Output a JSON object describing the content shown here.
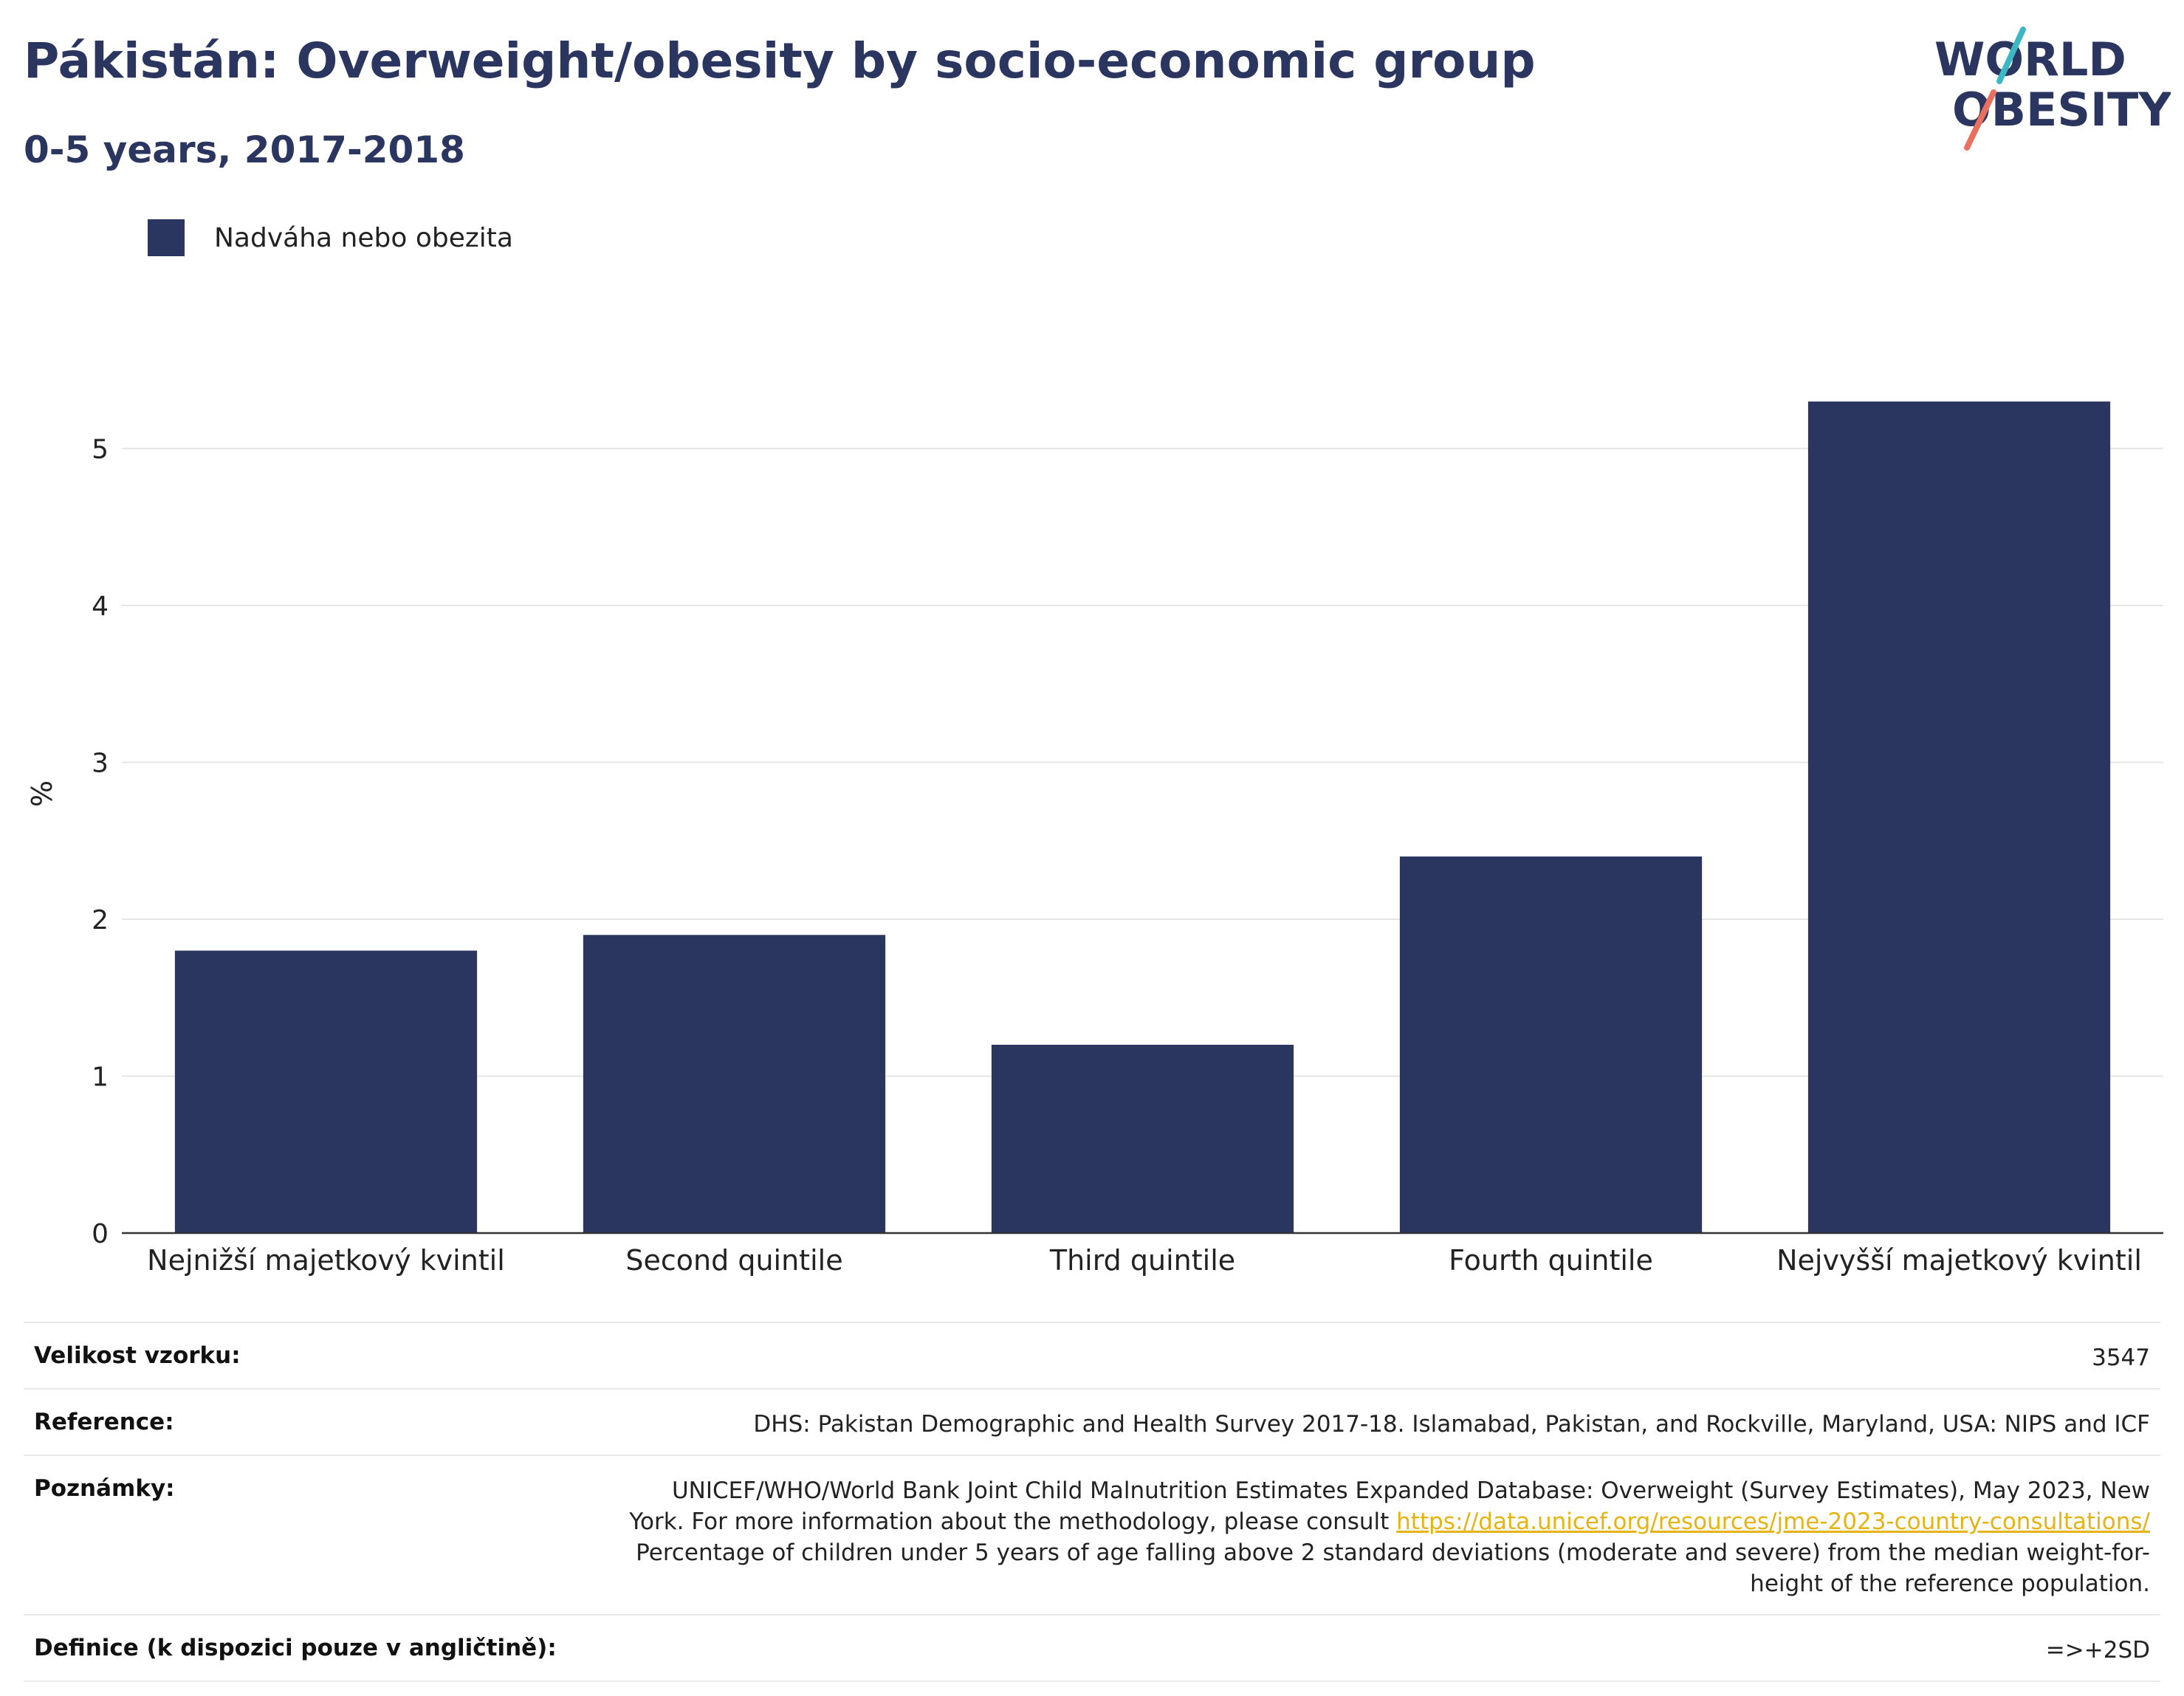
{
  "header": {
    "title": "Pákistán: Overweight/obesity by socio-economic group",
    "subtitle": "0-5 years, 2017-2018"
  },
  "logo": {
    "line1": "WORLD",
    "line2": "OBESITY"
  },
  "colors": {
    "bar": "#2a3560",
    "logo_teal": "#3bb8c3",
    "logo_coral": "#e8705e",
    "link": "#e6b412"
  },
  "chart_data": {
    "type": "bar",
    "categories": [
      "Nejnižší majetkový kvintil",
      "Second quintile",
      "Third quintile",
      "Fourth quintile",
      "Nejvyšší majetkový kvintil"
    ],
    "series": [
      {
        "name": "Nadváha nebo obezita",
        "values": [
          1.8,
          1.9,
          1.2,
          2.4,
          5.3
        ]
      }
    ],
    "ylabel": "%",
    "ylim": [
      0,
      5.6
    ],
    "yticks": [
      0,
      1,
      2,
      3,
      4,
      5
    ],
    "grid": true,
    "legend": "top-left"
  },
  "meta": {
    "sample_size": {
      "label": "Velikost vzorku:",
      "value": "3547"
    },
    "reference": {
      "label": "Reference:",
      "value": "DHS: Pakistan Demographic and Health Survey 2017-18. Islamabad, Pakistan, and Rockville, Maryland, USA: NIPS and ICF"
    },
    "notes": {
      "label": "Poznámky:",
      "text1": "UNICEF/WHO/World Bank Joint Child Malnutrition Estimates Expanded Database: Overweight (Survey Estimates), May 2023, New York. For more information about the methodology, please consult ",
      "link": "https://data.unicef.org/resources/jme-2023-country-consultations/",
      "text2": "Percentage of children under 5 years of age falling above 2 standard deviations (moderate and severe) from the median weight-for-height of the reference population."
    },
    "definition": {
      "label": "Definice (k dispozici pouze v angličtině):",
      "value": "=>+2SD"
    }
  }
}
